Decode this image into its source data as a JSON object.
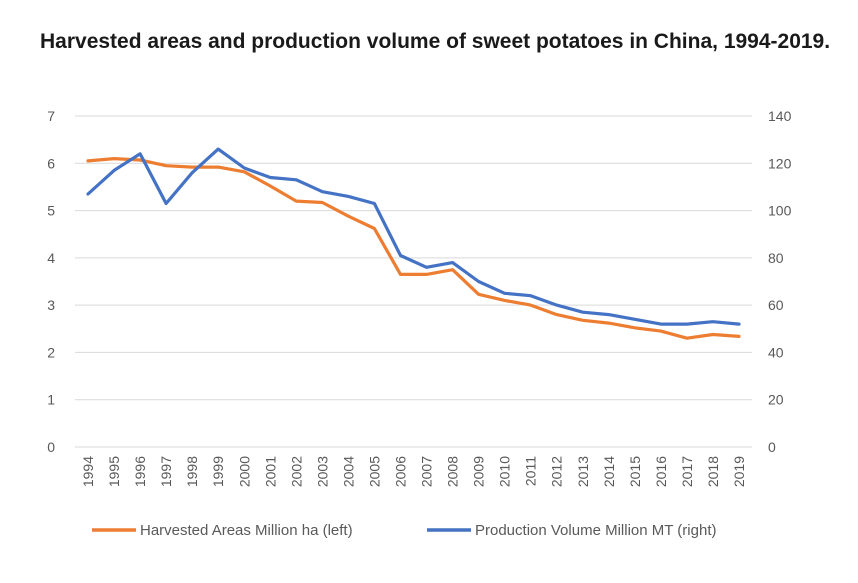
{
  "title": "Harvested areas and production volume of sweet potatoes in China, 1994-2019.",
  "chart_data": {
    "type": "line",
    "title": "Harvested areas and production volume of sweet potatoes in China, 1994-2019.",
    "x": [
      "1994",
      "1995",
      "1996",
      "1997",
      "1998",
      "1999",
      "2000",
      "2001",
      "2002",
      "2003",
      "2004",
      "2005",
      "2006",
      "2007",
      "2008",
      "2009",
      "2010",
      "2011",
      "2012",
      "2013",
      "2014",
      "2015",
      "2016",
      "2017",
      "2018",
      "2019"
    ],
    "y_left": {
      "ylim": [
        0,
        7
      ],
      "ticks": [
        0,
        1,
        2,
        3,
        4,
        5,
        6,
        7
      ]
    },
    "y_right": {
      "ylim": [
        0,
        140
      ],
      "ticks": [
        0,
        20,
        40,
        60,
        80,
        100,
        120,
        140
      ]
    },
    "series": [
      {
        "name": "Harvested Areas Million ha (left)",
        "axis": "left",
        "color": "#ED7D31",
        "values": [
          6.05,
          6.1,
          6.07,
          5.95,
          5.92,
          5.92,
          5.82,
          5.52,
          5.2,
          5.17,
          4.88,
          4.62,
          3.65,
          3.65,
          3.75,
          3.23,
          3.1,
          3.0,
          2.8,
          2.68,
          2.62,
          2.52,
          2.45,
          2.3,
          2.38,
          2.34
        ]
      },
      {
        "name": "Production Volume Million MT (right)",
        "axis": "right",
        "color": "#4472C4",
        "values": [
          107,
          117,
          124,
          103,
          116,
          126,
          118,
          114,
          113,
          108,
          106,
          103,
          81,
          76,
          78,
          70,
          65,
          64,
          60,
          57,
          56,
          54,
          52,
          52,
          53,
          52
        ]
      }
    ],
    "grid": true,
    "legend": "bottom"
  }
}
